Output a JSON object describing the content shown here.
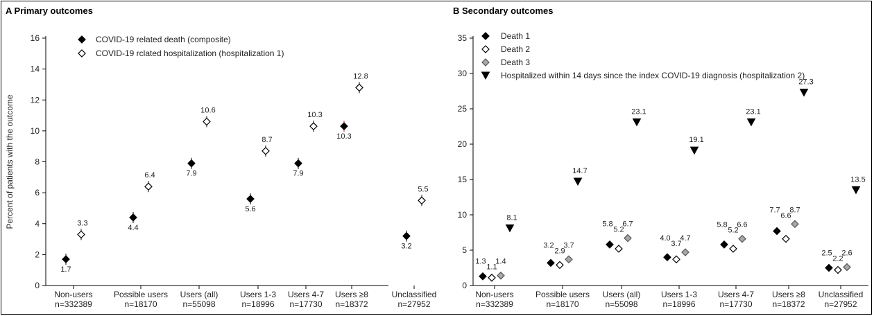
{
  "chart_data": [
    {
      "type": "scatter",
      "title": "Primary outcomes",
      "panel_letter": "A",
      "ylabel": "Percent of patients with the outcome",
      "xlabel": "",
      "ylim": [
        0,
        16
      ],
      "yticks": [
        0,
        2,
        4,
        6,
        8,
        10,
        12,
        14,
        16
      ],
      "grid": false,
      "legend_position": "top-left",
      "categories": [
        {
          "name": "Non-users",
          "n": "n=332389"
        },
        {
          "name": "Possible users",
          "n": "n=18170"
        },
        {
          "name": "Users (all)",
          "n": "n=55098"
        },
        {
          "name": "Users 1-3",
          "n": "n=18996"
        },
        {
          "name": "Users 4-7",
          "n": "n=17730"
        },
        {
          "name": "Users ≥8",
          "n": "n=18372"
        },
        {
          "name": "Unclassified",
          "n": "n=27952"
        }
      ],
      "series": [
        {
          "name": "COVID-19 related death (composite)",
          "marker": "diamond-filled",
          "values": [
            1.7,
            4.4,
            7.9,
            5.6,
            7.9,
            10.3,
            3.2
          ],
          "labels": [
            "1.7",
            "4.4",
            "7.9",
            "5.6",
            "7.9",
            "10.3",
            "3.2"
          ],
          "label_pos": "below"
        },
        {
          "name": "COVID-19 rclated hospitalization (hospitalization 1)",
          "marker": "diamond-open",
          "values": [
            3.3,
            6.4,
            10.6,
            8.7,
            10.3,
            12.8,
            5.5
          ],
          "labels": [
            "3.3",
            "6.4",
            "10.6",
            "8.7",
            "10.3",
            "12.8",
            "5.5"
          ],
          "label_pos": "above"
        }
      ]
    },
    {
      "type": "scatter",
      "title": "Secondary outcomes",
      "panel_letter": "B",
      "ylabel": "",
      "xlabel": "",
      "ylim": [
        0,
        35
      ],
      "yticks": [
        0,
        5,
        10,
        15,
        20,
        25,
        30,
        35
      ],
      "grid": false,
      "legend_position": "top-left",
      "categories": [
        {
          "name": "Non-users",
          "n": "n=332389"
        },
        {
          "name": "Possible users",
          "n": "n=18170"
        },
        {
          "name": "Users (all)",
          "n": "n=55098"
        },
        {
          "name": "Users 1-3",
          "n": "n=18996"
        },
        {
          "name": "Users 4-7",
          "n": "n=17730"
        },
        {
          "name": "Users ≥8",
          "n": "n=18372"
        },
        {
          "name": "Unclassified",
          "n": "n=27952"
        }
      ],
      "series": [
        {
          "name": "Death 1",
          "marker": "diamond-filled",
          "values": [
            1.3,
            3.2,
            5.8,
            4.0,
            5.8,
            7.7,
            2.5
          ],
          "labels": [
            "1.3",
            "3.2",
            "5.8",
            "4.0",
            "5.8",
            "7.7",
            "2.5"
          ]
        },
        {
          "name": "Death 2",
          "marker": "diamond-open",
          "values": [
            1.1,
            2.9,
            5.2,
            3.7,
            5.2,
            6.6,
            2.2
          ],
          "labels": [
            "1.1",
            "2.9",
            "5.2",
            "3.7",
            "5.2",
            "6.6",
            "2.2"
          ]
        },
        {
          "name": "Death 3",
          "marker": "diamond-gray",
          "values": [
            1.4,
            3.7,
            6.7,
            4.7,
            6.6,
            8.7,
            2.6
          ],
          "labels": [
            "1.4",
            "3.7",
            "6.7",
            "4.7",
            "6.6",
            "8.7",
            "2.6"
          ]
        },
        {
          "name": "Hospitalized within 14 days since the index COVID-19 diagnosis (hospitalization 2)",
          "marker": "triangle-down",
          "values": [
            8.1,
            14.7,
            23.1,
            19.1,
            23.1,
            27.3,
            13.5
          ],
          "labels": [
            "8.1",
            "14.7",
            "23.1",
            "19.1",
            "23.1",
            "27.3",
            "13.5"
          ]
        }
      ]
    }
  ],
  "colors": {
    "axis": "#000000",
    "marker_fill": "#000000",
    "marker_gray": "#a8a8a8",
    "highlight_line": "#cc2222"
  }
}
